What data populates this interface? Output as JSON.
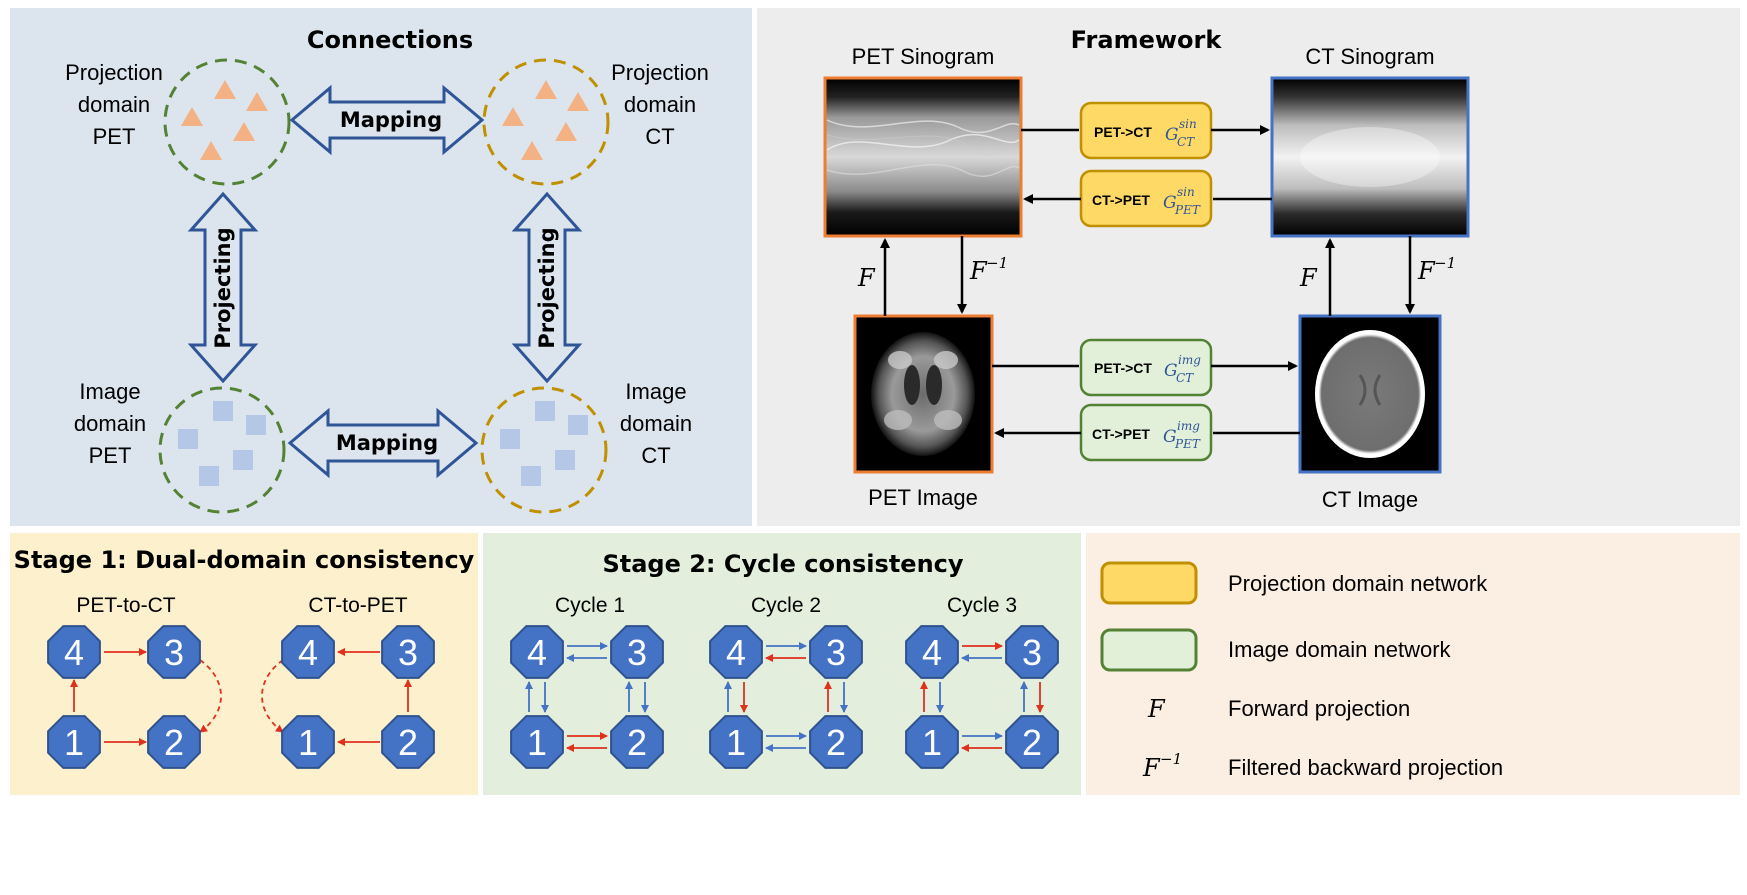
{
  "connections": {
    "title": "Connections",
    "proj_pet": [
      "Projection",
      "domain",
      "PET"
    ],
    "proj_ct": [
      "Projection",
      "domain",
      "CT"
    ],
    "img_pet": [
      "Image",
      "domain",
      "PET"
    ],
    "img_ct": [
      "Image",
      "domain",
      "CT"
    ],
    "mapping": "Mapping",
    "projecting": "Projecting"
  },
  "framework": {
    "title": "Framework",
    "pet_sinogram": "PET Sinogram",
    "ct_sinogram": "CT Sinogram",
    "pet_image": "PET Image",
    "ct_image": "CT Image",
    "net_pet_ct_sin": "PET->CT",
    "net_ct_pet_sin": "CT->PET",
    "net_pet_ct_img": "PET->CT",
    "net_ct_pet_img": "CT->PET",
    "g_sym": "G",
    "sup_sin": "sin",
    "sup_img": "img",
    "sub_ct": "CT",
    "sub_pet": "PET",
    "f": "F",
    "finv": "F",
    "finv_sup": "−1"
  },
  "stage1": {
    "title": "Stage 1: Dual-domain consistency",
    "a": "PET-to-CT",
    "b": "CT-to-PET"
  },
  "stage2": {
    "title": "Stage 2: Cycle consistency",
    "c1": "Cycle 1",
    "c2": "Cycle 2",
    "c3": "Cycle 3"
  },
  "nodes": {
    "n1": "1",
    "n2": "2",
    "n3": "3",
    "n4": "4"
  },
  "legend": {
    "proj_net": "Projection domain network",
    "img_net": "Image domain network",
    "f_sym": "F",
    "fwd": "Forward projection",
    "finv_sym": "F",
    "finv_sup": "−1",
    "fbp": "Filtered backward projection"
  },
  "colors": {
    "panel_blue": "#dce5ee",
    "panel_gray": "#ededed",
    "panel_yellow": "#fdf0cc",
    "panel_green": "#e3efdc",
    "panel_tan": "#faefe2",
    "node_blue": "#4472c4",
    "node_stroke": "#2f528f",
    "red": "#e0301e",
    "blue_line": "#4472c4",
    "orange_border": "#ed7d31",
    "blue_border": "#4472c4",
    "yellow_box": "#ffd966",
    "yellow_box_stroke": "#bf9000",
    "green_box": "#e2f0d9",
    "green_box_stroke": "#548235",
    "dash_green": "#548235",
    "dash_gold": "#bf9000",
    "triangle": "#f4b183",
    "square": "#b4c7e7"
  }
}
